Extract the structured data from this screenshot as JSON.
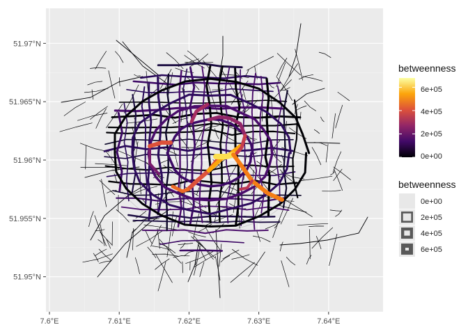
{
  "chart_data": {
    "type": "map",
    "panel_bg": "#ebebeb",
    "grid_color": "#ffffff",
    "x_ticks": [
      "7.6°E",
      "7.61°E",
      "7.62°E",
      "7.63°E",
      "7.64°E"
    ],
    "y_ticks": [
      "51.97°N",
      "51.965°N",
      "51.96°N",
      "51.955°N",
      "51.95°N"
    ],
    "x_tick_values": [
      7.6,
      7.61,
      7.62,
      7.63,
      7.64
    ],
    "y_tick_values": [
      51.97,
      51.965,
      51.96,
      51.955,
      51.95
    ],
    "xlim": [
      7.5995,
      7.6478
    ],
    "ylim": [
      51.947,
      51.973
    ],
    "colour_legend": {
      "title": "betweenness",
      "palette": "inferno",
      "stops": [
        "#000004",
        "#420a68",
        "#932667",
        "#dd513a",
        "#fca50a",
        "#fcffa4"
      ],
      "labels": [
        "0e+00",
        "2e+05",
        "4e+05",
        "6e+05"
      ],
      "values": [
        0,
        200000,
        400000,
        600000
      ],
      "range": [
        0,
        680000
      ]
    },
    "size_legend": {
      "title": "betweenness",
      "labels": [
        "0e+00",
        "2e+05",
        "4e+05",
        "6e+05"
      ],
      "values": [
        0,
        200000,
        400000,
        600000
      ]
    }
  }
}
